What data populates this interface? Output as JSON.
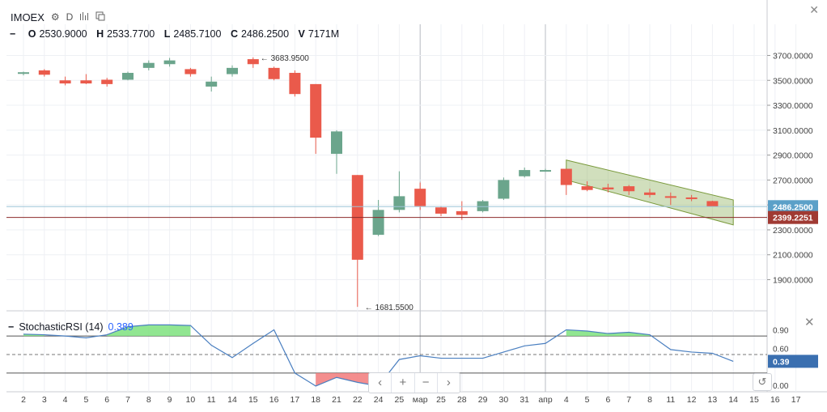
{
  "header": {
    "symbol": "IMOEX",
    "interval": "D",
    "icons": [
      "gear-icon",
      "bars-style-icon",
      "compare-icon"
    ],
    "ohlc": {
      "o_label": "O",
      "o": "2530.9000",
      "h_label": "H",
      "h": "2533.7700",
      "l_label": "L",
      "l": "2485.7100",
      "c_label": "C",
      "c": "2486.2500",
      "v_label": "V",
      "v": "7171M"
    }
  },
  "indicator": {
    "name": "StochasticRSI (14)",
    "value": "0.389"
  },
  "nav_buttons": [
    "‹",
    "+",
    "−",
    "›"
  ],
  "colors": {
    "up": "#6ba58c",
    "down": "#ea5a4b",
    "channel": "#8bb05a",
    "stoch": "#4a7fc0",
    "hline": "#8b2a2a"
  },
  "chart_data": [
    {
      "type": "candlestick",
      "categories": [
        "2",
        "3",
        "4",
        "5",
        "6",
        "7",
        "8",
        "9",
        "10",
        "11",
        "14",
        "15",
        "16",
        "17",
        "18",
        "21",
        "22",
        "24",
        "25",
        "мар",
        "25",
        "28",
        "29",
        "30",
        "31",
        "апр",
        "4",
        "5",
        "6",
        "7",
        "8",
        "11",
        "12",
        "13",
        "14"
      ],
      "candles": [
        {
          "x": "2",
          "o": 3560,
          "h": 3570,
          "l": 3540,
          "c": 3565
        },
        {
          "x": "3",
          "o": 3580,
          "h": 3590,
          "l": 3530,
          "c": 3545
        },
        {
          "x": "4",
          "o": 3500,
          "h": 3530,
          "l": 3460,
          "c": 3475
        },
        {
          "x": "5",
          "o": 3500,
          "h": 3550,
          "l": 3470,
          "c": 3475
        },
        {
          "x": "6",
          "o": 3505,
          "h": 3520,
          "l": 3450,
          "c": 3470
        },
        {
          "x": "7",
          "o": 3505,
          "h": 3570,
          "l": 3500,
          "c": 3560
        },
        {
          "x": "8",
          "o": 3600,
          "h": 3660,
          "l": 3580,
          "c": 3640
        },
        {
          "x": "9",
          "o": 3630,
          "h": 3680,
          "l": 3610,
          "c": 3660
        },
        {
          "x": "10",
          "o": 3590,
          "h": 3600,
          "l": 3530,
          "c": 3550
        },
        {
          "x": "11",
          "o": 3450,
          "h": 3530,
          "l": 3410,
          "c": 3490
        },
        {
          "x": "14",
          "o": 3550,
          "h": 3620,
          "l": 3530,
          "c": 3600
        },
        {
          "x": "15",
          "o": 3670,
          "h": 3684,
          "l": 3600,
          "c": 3630
        },
        {
          "x": "16",
          "o": 3600,
          "h": 3610,
          "l": 3500,
          "c": 3510
        },
        {
          "x": "17",
          "o": 3560,
          "h": 3580,
          "l": 3370,
          "c": 3390
        },
        {
          "x": "18",
          "o": 3470,
          "h": 3470,
          "l": 2910,
          "c": 3040
        },
        {
          "x": "21",
          "o": 2910,
          "h": 3100,
          "l": 2750,
          "c": 3090
        },
        {
          "x": "22",
          "o": 2740,
          "h": 2740,
          "l": 1681.55,
          "c": 2060
        },
        {
          "x": "24",
          "o": 2260,
          "h": 2540,
          "l": 2250,
          "c": 2460
        },
        {
          "x": "25",
          "o": 2460,
          "h": 2770,
          "l": 2440,
          "c": 2570
        },
        {
          "x": "мар",
          "o": 2630,
          "h": 2680,
          "l": 2460,
          "c": 2490
        },
        {
          "x": "28",
          "o": 2480,
          "h": 2490,
          "l": 2410,
          "c": 2430
        },
        {
          "x": "29",
          "o": 2450,
          "h": 2530,
          "l": 2380,
          "c": 2420
        },
        {
          "x": "30",
          "o": 2450,
          "h": 2540,
          "l": 2440,
          "c": 2530
        },
        {
          "x": "31",
          "o": 2550,
          "h": 2720,
          "l": 2540,
          "c": 2700
        },
        {
          "x": "апр",
          "o": 2730,
          "h": 2800,
          "l": 2720,
          "c": 2780
        },
        {
          "x": "4",
          "o": 2780,
          "h": 2790,
          "l": 2770,
          "c": 2780
        },
        {
          "x": "5",
          "o": 2790,
          "h": 2790,
          "l": 2580,
          "c": 2660
        },
        {
          "x": "6",
          "o": 2650,
          "h": 2690,
          "l": 2610,
          "c": 2620
        },
        {
          "x": "7",
          "o": 2640,
          "h": 2670,
          "l": 2600,
          "c": 2625
        },
        {
          "x": "8",
          "o": 2650,
          "h": 2660,
          "l": 2580,
          "c": 2610
        },
        {
          "x": "11",
          "o": 2600,
          "h": 2630,
          "l": 2560,
          "c": 2580
        },
        {
          "x": "12",
          "o": 2570,
          "h": 2600,
          "l": 2500,
          "c": 2560
        },
        {
          "x": "13",
          "o": 2560,
          "h": 2580,
          "l": 2530,
          "c": 2550
        },
        {
          "x": "14",
          "o": 2530.9,
          "h": 2533.77,
          "l": 2485.71,
          "c": 2486.25
        }
      ],
      "y_axis": {
        "ticks": [
          "1900.0000",
          "2100.0000",
          "2300.0000",
          "2500.0000",
          "2700.0000",
          "2900.0000",
          "3100.0000",
          "3300.0000",
          "3500.0000",
          "3700.0000"
        ],
        "ylim": [
          1650,
          3950
        ]
      },
      "x_axis": {
        "ticks": [
          "2",
          "3",
          "4",
          "5",
          "6",
          "7",
          "8",
          "9",
          "10",
          "11",
          "14",
          "15",
          "16",
          "17",
          "18",
          "21",
          "22",
          "24",
          "25",
          "мар",
          "25",
          "28",
          "29",
          "30",
          "31",
          "апр",
          "4",
          "5",
          "6",
          "7",
          "8",
          "11",
          "12",
          "13",
          "14",
          "15",
          "16",
          "17"
        ]
      },
      "annotations": [
        {
          "text": "3683.9500",
          "kind": "high"
        },
        {
          "text": "1681.5500",
          "kind": "low"
        }
      ],
      "price_labels": [
        {
          "text": "2486.2500",
          "value": 2486.25,
          "color": "#5ba0c8"
        },
        {
          "text": "2399.2251",
          "value": 2399.2251,
          "color": "#a03a33"
        }
      ],
      "horizontal_lines": [
        2486.25,
        2399.2251
      ],
      "channel": {
        "start_x": "4",
        "end_x": "14",
        "upper": [
          2860,
          2540
        ],
        "lower": [
          2700,
          2340
        ]
      }
    },
    {
      "type": "line",
      "title": "StochasticRSI (14)",
      "values": [
        0.83,
        0.82,
        0.8,
        0.77,
        0.82,
        0.95,
        0.98,
        0.98,
        0.97,
        0.65,
        0.45,
        0.68,
        0.9,
        0.2,
        -0.01,
        0.13,
        0.05,
        -0.01,
        0.42,
        0.48,
        0.44,
        0.44,
        0.44,
        0.54,
        0.64,
        0.68,
        0.9,
        0.88,
        0.84,
        0.86,
        0.82,
        0.58,
        0.54,
        0.52,
        0.39
      ],
      "ticks": [
        "0.90",
        "0.60",
        "0.00"
      ],
      "upper": 0.8,
      "mid": 0.5,
      "lower": 0.2,
      "current": "0.39",
      "ylim": [
        -0.05,
        1.05
      ]
    }
  ]
}
